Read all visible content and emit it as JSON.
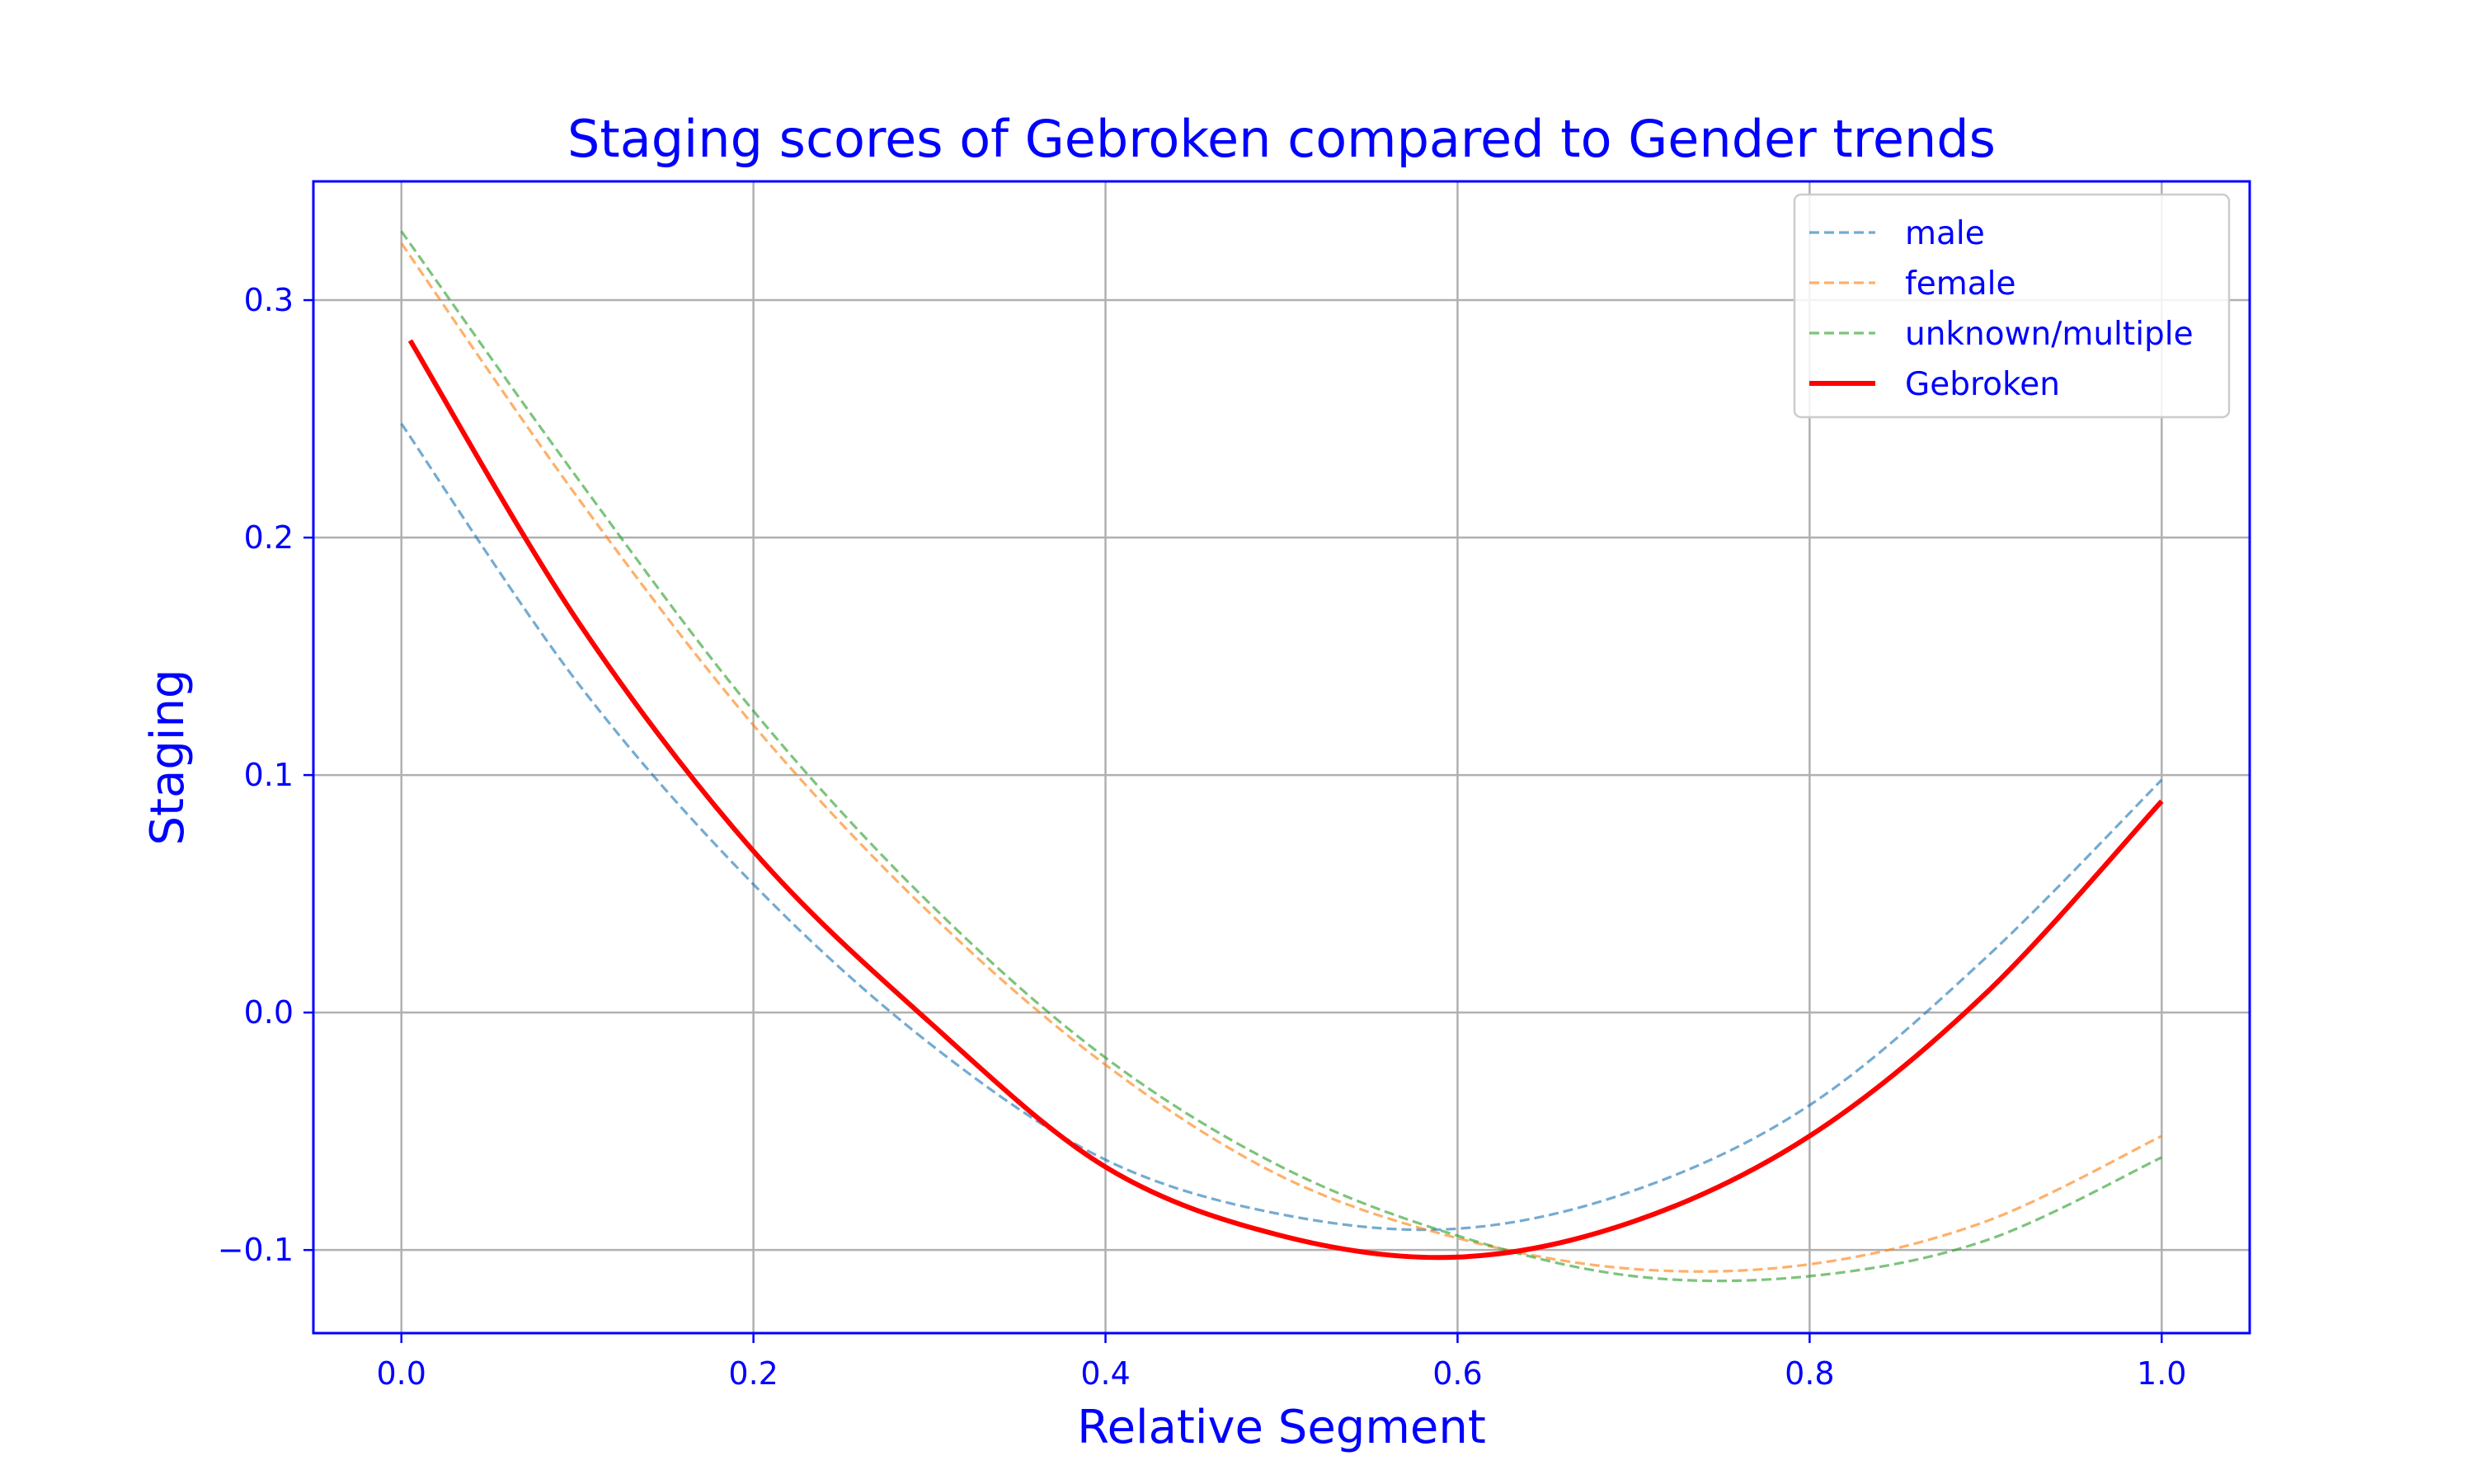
{
  "chart_data": {
    "type": "line",
    "title": "Staging scores of Gebroken compared to Gender trends",
    "xlabel": "Relative Segment",
    "ylabel": "Staging",
    "xlim": [
      -0.05,
      1.05
    ],
    "ylim": [
      -0.135,
      0.35
    ],
    "xticks": [
      0.0,
      0.2,
      0.4,
      0.6,
      0.8,
      1.0
    ],
    "xtick_labels": [
      "0.0",
      "0.2",
      "0.4",
      "0.6",
      "0.8",
      "1.0"
    ],
    "yticks": [
      -0.1,
      0.0,
      0.1,
      0.2,
      0.3
    ],
    "ytick_labels": [
      "−0.1",
      "0.0",
      "0.1",
      "0.2",
      "0.3"
    ],
    "grid": true,
    "legend_position": "top-right",
    "series": [
      {
        "name": "male",
        "color": "#1f77b4",
        "style": "dashed",
        "x": [
          0.0,
          0.1,
          0.2,
          0.3,
          0.4,
          0.5,
          0.6,
          0.7,
          0.8,
          0.9,
          1.0
        ],
        "y": [
          0.248,
          0.139,
          0.054,
          -0.013,
          -0.062,
          -0.085,
          -0.091,
          -0.075,
          -0.039,
          0.023,
          0.098
        ]
      },
      {
        "name": "female",
        "color": "#ff7f0e",
        "style": "dashed",
        "x": [
          0.0,
          0.1,
          0.2,
          0.3,
          0.4,
          0.5,
          0.6,
          0.7,
          0.8,
          0.9,
          1.0
        ],
        "y": [
          0.324,
          0.217,
          0.121,
          0.042,
          -0.022,
          -0.069,
          -0.095,
          -0.108,
          -0.106,
          -0.088,
          -0.052
        ]
      },
      {
        "name": "unknown/multiple",
        "color": "#2ca02c",
        "style": "dashed",
        "x": [
          0.0,
          0.1,
          0.2,
          0.3,
          0.4,
          0.5,
          0.6,
          0.7,
          0.8,
          0.9,
          1.0
        ],
        "y": [
          0.329,
          0.225,
          0.127,
          0.046,
          -0.019,
          -0.065,
          -0.094,
          -0.111,
          -0.111,
          -0.096,
          -0.061
        ]
      },
      {
        "name": "Gebroken",
        "color": "#ff0000",
        "style": "solid",
        "x": [
          0.005,
          0.1,
          0.2,
          0.3,
          0.4,
          0.5,
          0.6,
          0.7,
          0.8,
          0.9,
          1.0
        ],
        "y": [
          0.283,
          0.165,
          0.068,
          -0.004,
          -0.065,
          -0.094,
          -0.103,
          -0.088,
          -0.052,
          0.008,
          0.089
        ]
      }
    ]
  }
}
